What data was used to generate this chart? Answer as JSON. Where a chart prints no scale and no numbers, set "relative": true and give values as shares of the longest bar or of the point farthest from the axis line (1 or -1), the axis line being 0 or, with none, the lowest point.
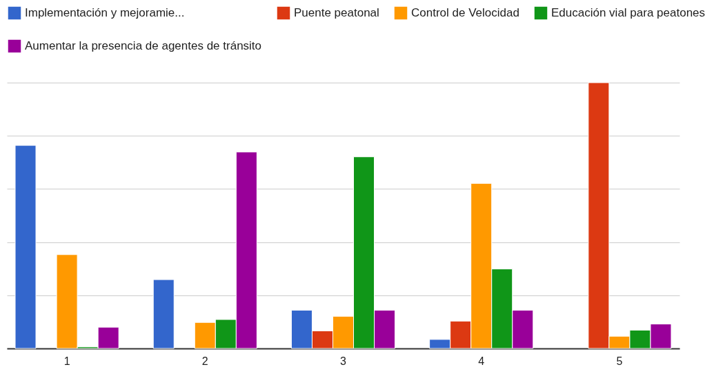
{
  "chart_data": {
    "type": "bar",
    "relative": true,
    "grid": "y",
    "legend": "top",
    "categories": [
      "1",
      "2",
      "3",
      "4",
      "5"
    ],
    "series": [
      {
        "name": "Implementación y mejoramie...",
        "color": "#3366cc",
        "values": [
          0.764,
          0.259,
          0.144,
          0.034,
          null
        ]
      },
      {
        "name": "Puente peatonal",
        "color": "#dc3912",
        "values": [
          null,
          null,
          0.066,
          0.103,
          1
        ]
      },
      {
        "name": "Control de Velocidad",
        "color": "#ff9900",
        "values": [
          0.353,
          0.098,
          0.121,
          0.621,
          0.046
        ]
      },
      {
        "name": "Educación vial para peatones",
        "color": "#109618",
        "values": [
          0.006,
          0.109,
          0.721,
          0.299,
          0.069
        ]
      },
      {
        "name": "Aumentar la presencia de agentes de tránsito",
        "color": "#990099",
        "values": [
          0.08,
          0.739,
          0.144,
          0.144,
          0.092
        ]
      }
    ]
  }
}
